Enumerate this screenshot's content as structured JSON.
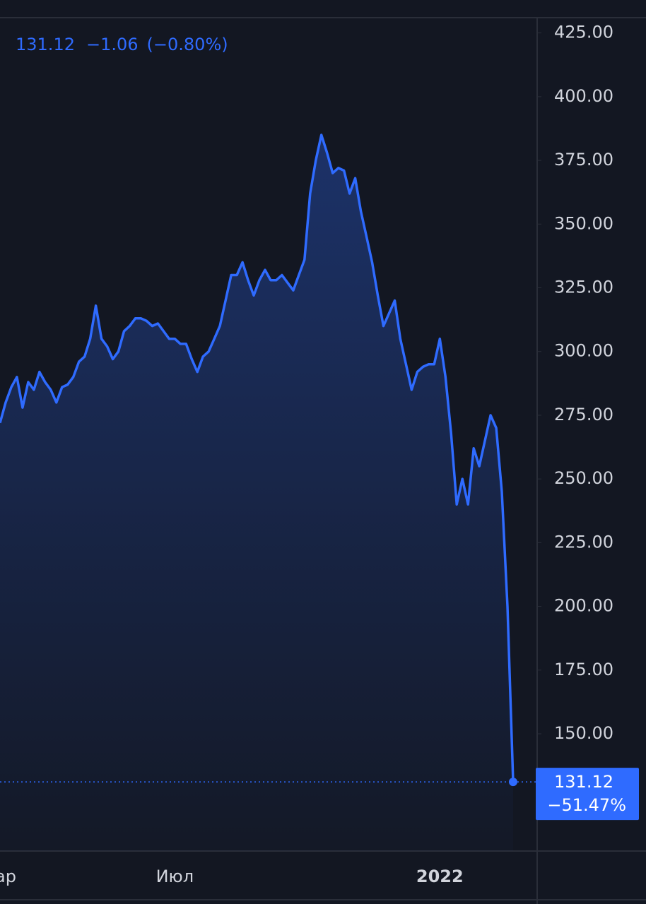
{
  "chart_data": {
    "type": "line",
    "header_change": "−1.06",
    "header_change_pct": "(−0.80%)",
    "last_change_pct": "−51.47%",
    "color": "#2f6bff",
    "categories": [
      null,
      "ар",
      null,
      null,
      null,
      null,
      null,
      null,
      null,
      null,
      null,
      null,
      null,
      null,
      null,
      null,
      null,
      null,
      null,
      null,
      null,
      null,
      null,
      null,
      null,
      null,
      null,
      null,
      null,
      null,
      null,
      "Июл",
      null,
      null,
      null,
      null,
      null,
      null,
      null,
      null,
      null,
      null,
      null,
      null,
      null,
      null,
      null,
      null,
      null,
      null,
      null,
      null,
      null,
      null,
      null,
      null,
      null,
      null,
      null,
      null,
      null,
      null,
      null,
      null,
      null,
      null,
      null,
      null,
      null,
      null,
      null,
      null,
      null,
      null,
      null,
      null,
      null,
      null,
      "2022",
      null,
      null,
      null,
      null,
      null,
      null,
      null,
      null,
      null,
      null,
      null,
      null,
      null
    ],
    "values": [
      272,
      280,
      286,
      290,
      278,
      288,
      285,
      292,
      288,
      285,
      280,
      286,
      287,
      290,
      296,
      298,
      305,
      318,
      305,
      302,
      297,
      300,
      308,
      310,
      313,
      313,
      312,
      310,
      311,
      308,
      305,
      305,
      303,
      303,
      297,
      292,
      298,
      300,
      305,
      310,
      320,
      330,
      330,
      335,
      328,
      322,
      328,
      332,
      328,
      328,
      330,
      327,
      324,
      330,
      336,
      362,
      375,
      385,
      378,
      370,
      372,
      371,
      362,
      368,
      355,
      345,
      335,
      322,
      310,
      315,
      320,
      305,
      295,
      285,
      292,
      294,
      295,
      295,
      305,
      290,
      268,
      240,
      250,
      240,
      262,
      255,
      265,
      275,
      270,
      245,
      200,
      131.12
    ],
    "ylim": [
      104,
      431
    ],
    "yticks": [
      {
        "value": 150,
        "label": "150.00"
      },
      {
        "value": 175,
        "label": "175.00"
      },
      {
        "value": 200,
        "label": "200.00"
      },
      {
        "value": 225,
        "label": "225.00"
      },
      {
        "value": 250,
        "label": "250.00"
      },
      {
        "value": 275,
        "label": "275.00"
      },
      {
        "value": 300,
        "label": "300.00"
      },
      {
        "value": 325,
        "label": "325.00"
      },
      {
        "value": 350,
        "label": "350.00"
      },
      {
        "value": 375,
        "label": "375.00"
      },
      {
        "value": 400,
        "label": "400.00"
      },
      {
        "value": 425,
        "label": "425.00"
      }
    ]
  }
}
